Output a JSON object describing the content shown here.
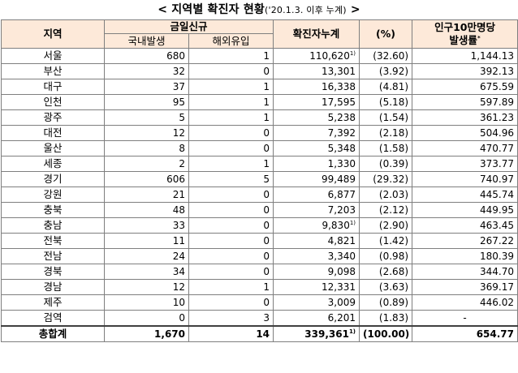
{
  "title": {
    "main": "< 지역별 확진자 현황",
    "paren": "('20.1.3. 이후 누계)",
    "suffix": " >"
  },
  "headers": {
    "region": "지역",
    "today_new": "금일신규",
    "domestic": "국내발생",
    "overseas": "해외유입",
    "cumulative": "확진자누계",
    "percent": "(%)",
    "rate_line1": "인구10만명당",
    "rate_line2": "발생률",
    "rate_note": "*"
  },
  "rows": [
    {
      "region": "서울",
      "domestic": "680",
      "overseas": "1",
      "cumulative": "110,620",
      "note": "1)",
      "percent": "(32.60)",
      "rate": "1,144.13"
    },
    {
      "region": "부산",
      "domestic": "32",
      "overseas": "0",
      "cumulative": "13,301",
      "note": "",
      "percent": "(3.92)",
      "rate": "392.13"
    },
    {
      "region": "대구",
      "domestic": "37",
      "overseas": "1",
      "cumulative": "16,338",
      "note": "",
      "percent": "(4.81)",
      "rate": "675.59"
    },
    {
      "region": "인천",
      "domestic": "95",
      "overseas": "1",
      "cumulative": "17,595",
      "note": "",
      "percent": "(5.18)",
      "rate": "597.89"
    },
    {
      "region": "광주",
      "domestic": "5",
      "overseas": "1",
      "cumulative": "5,238",
      "note": "",
      "percent": "(1.54)",
      "rate": "361.23"
    },
    {
      "region": "대전",
      "domestic": "12",
      "overseas": "0",
      "cumulative": "7,392",
      "note": "",
      "percent": "(2.18)",
      "rate": "504.96"
    },
    {
      "region": "울산",
      "domestic": "8",
      "overseas": "0",
      "cumulative": "5,348",
      "note": "",
      "percent": "(1.58)",
      "rate": "470.77"
    },
    {
      "region": "세종",
      "domestic": "2",
      "overseas": "1",
      "cumulative": "1,330",
      "note": "",
      "percent": "(0.39)",
      "rate": "373.77"
    },
    {
      "region": "경기",
      "domestic": "606",
      "overseas": "5",
      "cumulative": "99,489",
      "note": "",
      "percent": "(29.32)",
      "rate": "740.97"
    },
    {
      "region": "강원",
      "domestic": "21",
      "overseas": "0",
      "cumulative": "6,877",
      "note": "",
      "percent": "(2.03)",
      "rate": "445.74"
    },
    {
      "region": "충북",
      "domestic": "48",
      "overseas": "0",
      "cumulative": "7,203",
      "note": "",
      "percent": "(2.12)",
      "rate": "449.95"
    },
    {
      "region": "충남",
      "domestic": "33",
      "overseas": "0",
      "cumulative": "9,830",
      "note": "1)",
      "percent": "(2.90)",
      "rate": "463.45"
    },
    {
      "region": "전북",
      "domestic": "11",
      "overseas": "0",
      "cumulative": "4,821",
      "note": "",
      "percent": "(1.42)",
      "rate": "267.22"
    },
    {
      "region": "전남",
      "domestic": "24",
      "overseas": "0",
      "cumulative": "3,340",
      "note": "",
      "percent": "(0.98)",
      "rate": "180.39"
    },
    {
      "region": "경북",
      "domestic": "34",
      "overseas": "0",
      "cumulative": "9,098",
      "note": "",
      "percent": "(2.68)",
      "rate": "344.70"
    },
    {
      "region": "경남",
      "domestic": "12",
      "overseas": "1",
      "cumulative": "12,331",
      "note": "",
      "percent": "(3.63)",
      "rate": "369.17"
    },
    {
      "region": "제주",
      "domestic": "10",
      "overseas": "0",
      "cumulative": "3,009",
      "note": "",
      "percent": "(0.89)",
      "rate": "446.02"
    },
    {
      "region": "검역",
      "domestic": "0",
      "overseas": "3",
      "cumulative": "6,201",
      "note": "",
      "percent": "(1.83)",
      "rate": "-"
    }
  ],
  "total": {
    "region": "총합계",
    "domestic": "1,670",
    "overseas": "14",
    "cumulative": "339,361",
    "note": "1)",
    "percent": "(100.00)",
    "rate": "654.77"
  },
  "colors": {
    "header_bg": "#fde9d9",
    "border": "#7f7f7f"
  }
}
